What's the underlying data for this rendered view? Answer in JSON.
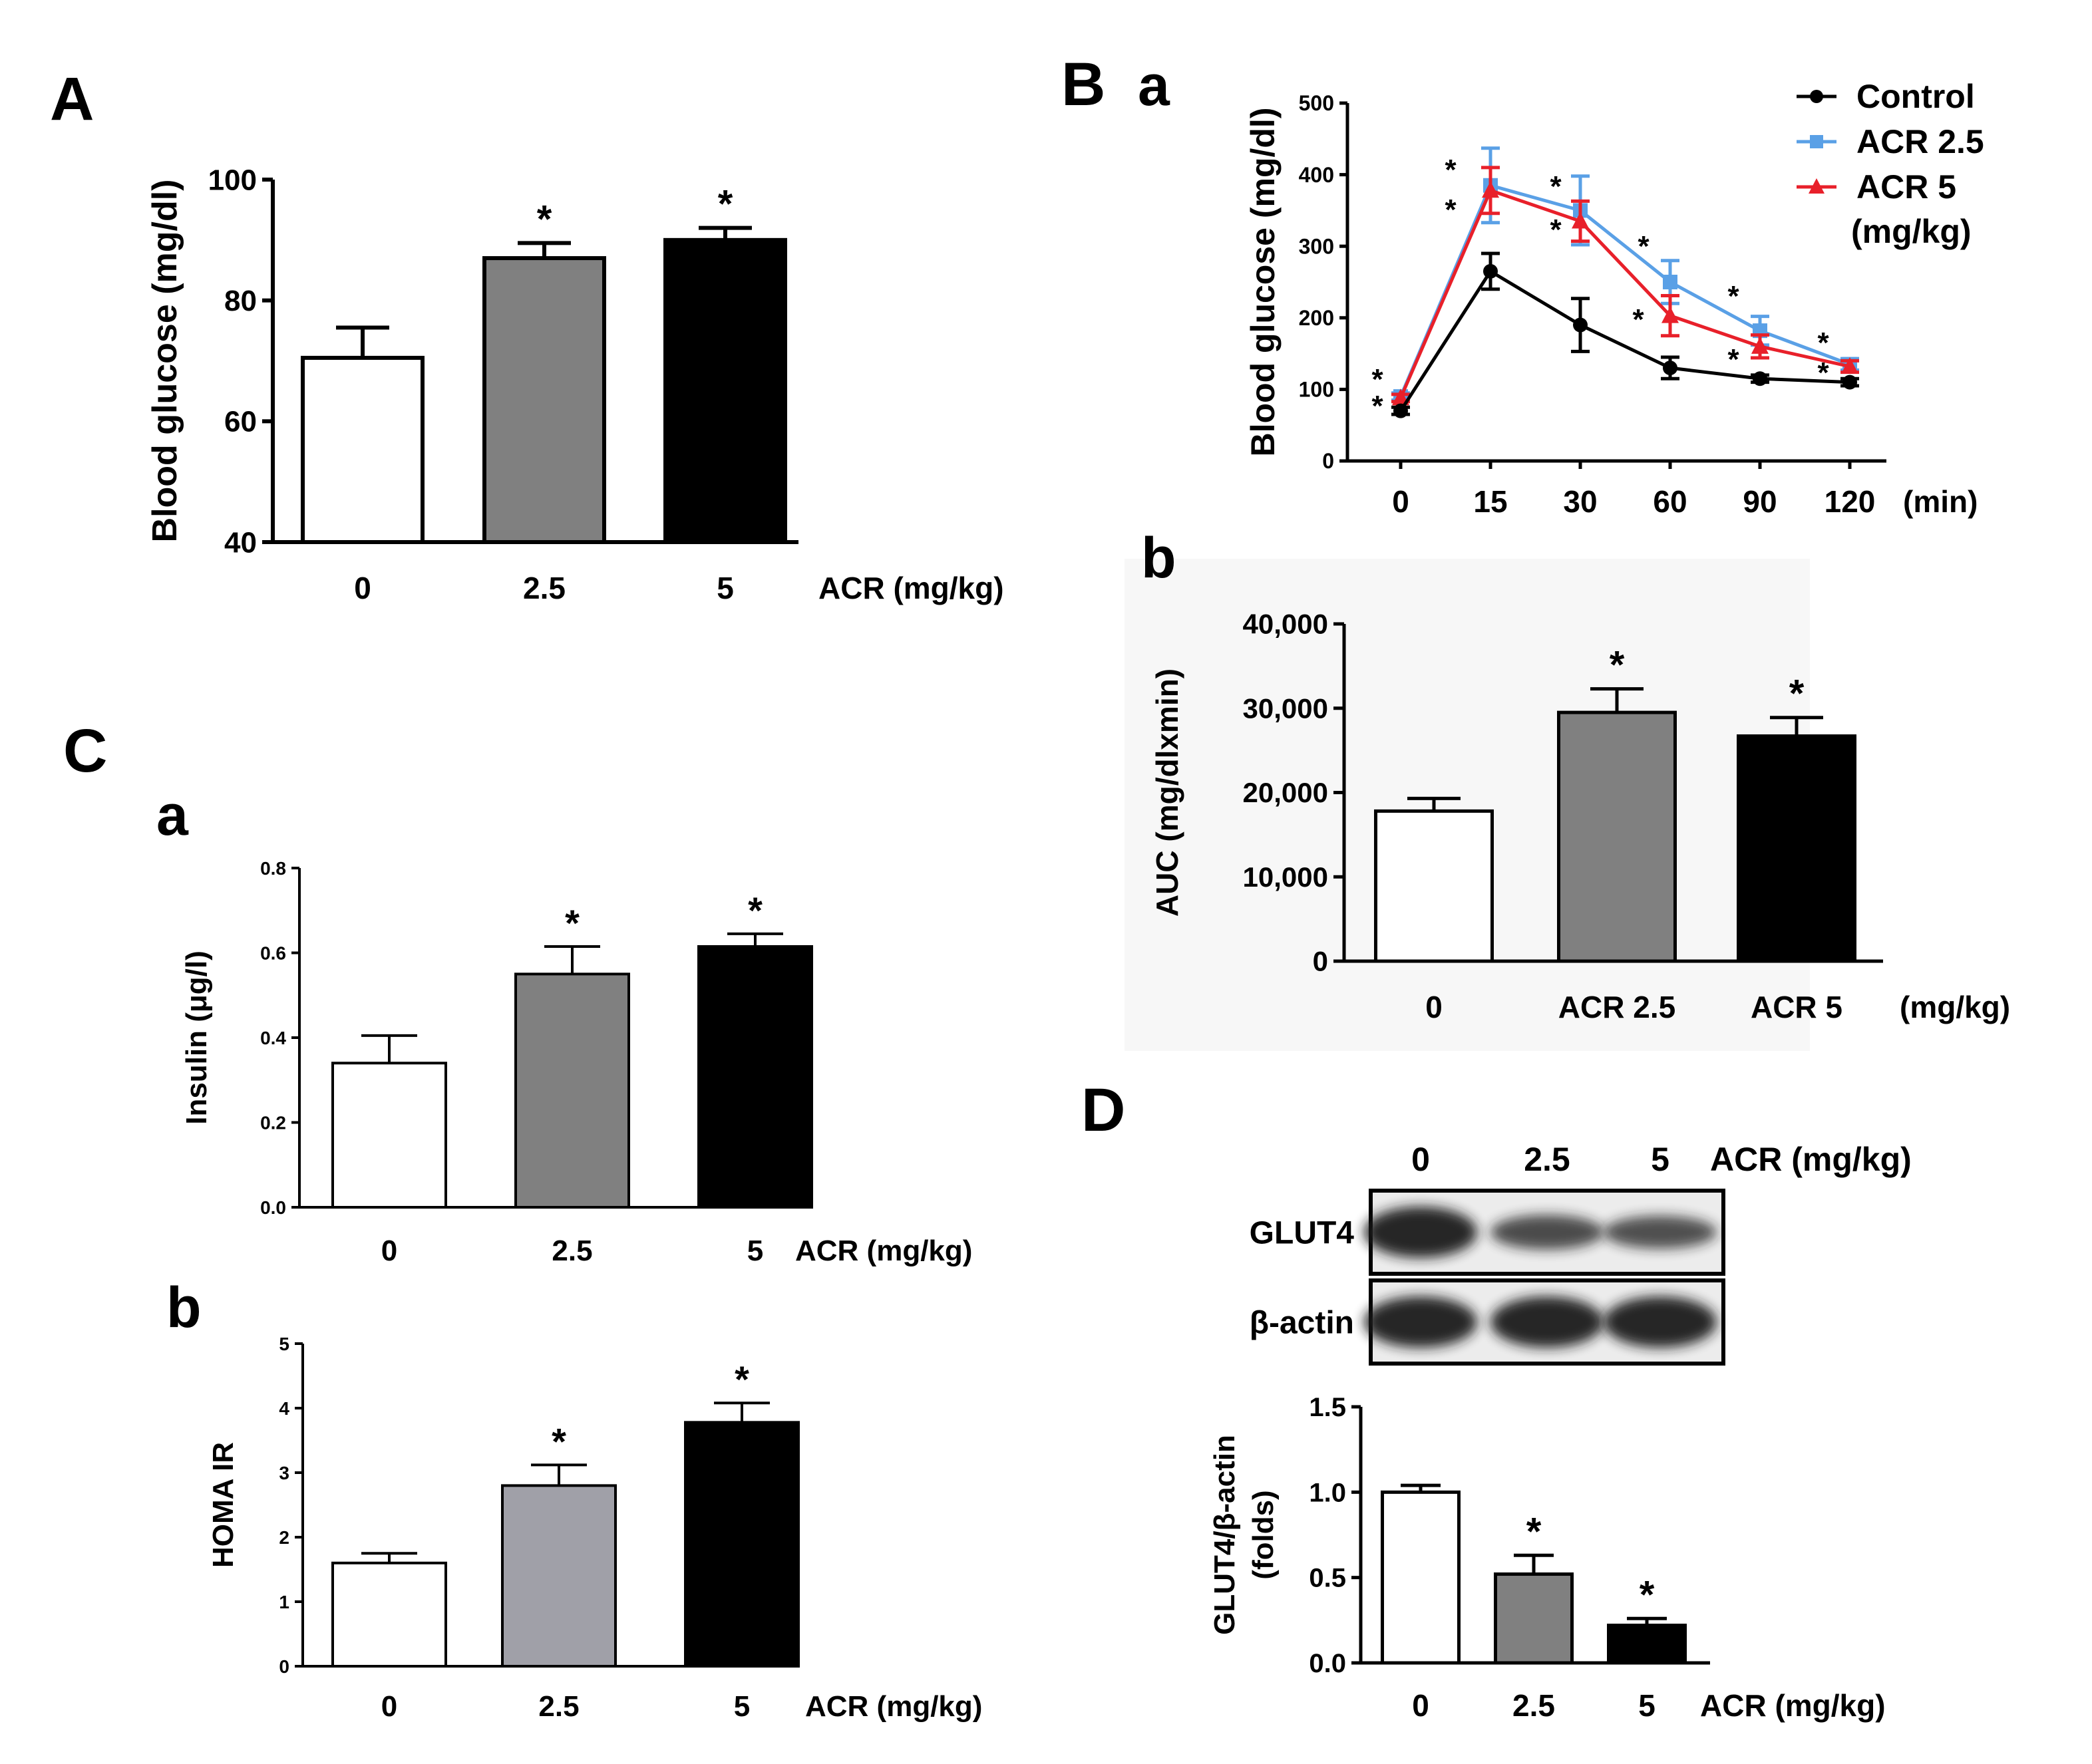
{
  "panel_labels": {
    "A": "A",
    "B": "B",
    "Ba": "a",
    "Bb": "b",
    "C": "C",
    "Ca": "a",
    "Cb": "b",
    "D": "D"
  },
  "blot": {
    "lane_labels": [
      "0",
      "2.5",
      "5"
    ],
    "header_unit": "ACR (mg/kg)",
    "rows": [
      {
        "label": "GLUT4",
        "intensities": [
          1.0,
          0.55,
          0.5
        ]
      },
      {
        "label": "β-actin",
        "intensities": [
          1.0,
          1.0,
          1.0
        ]
      }
    ]
  },
  "chart_data": [
    {
      "id": "A",
      "type": "bar",
      "categories": [
        "0",
        "2.5",
        "5"
      ],
      "values": [
        70.5,
        87,
        90
      ],
      "errors": [
        5,
        2.5,
        2
      ],
      "fills": [
        "#ffffff",
        "#808080",
        "#000000"
      ],
      "significance": [
        "",
        "*",
        "*"
      ],
      "ylabel": "Blood glucose (mg/dl)",
      "xunit": "ACR (mg/kg)",
      "ylim": [
        40,
        100
      ],
      "yticks": [
        40,
        60,
        80,
        100
      ]
    },
    {
      "id": "Ba",
      "type": "line",
      "categories": [
        "0",
        "15",
        "30",
        "60",
        "90",
        "120"
      ],
      "xunit": "(min)",
      "ylabel": "Blood glucose (mg/dl)",
      "ylim": [
        0,
        500
      ],
      "yticks": [
        0,
        100,
        200,
        300,
        400,
        500
      ],
      "legend_position": "top-right",
      "legend_unit": "(mg/kg)",
      "series": [
        {
          "name": "Control",
          "color": "#000000",
          "marker": "circle",
          "values": [
            70,
            265,
            190,
            130,
            115,
            110
          ],
          "errors": [
            5,
            25,
            37,
            15,
            5,
            5
          ]
        },
        {
          "name": "ACR 2.5",
          "color": "#5aa0e6",
          "marker": "square",
          "values": [
            90,
            385,
            350,
            250,
            182,
            135
          ],
          "errors": [
            5,
            52,
            48,
            30,
            20,
            8
          ]
        },
        {
          "name": "ACR 5",
          "color": "#e8202a",
          "marker": "triangle",
          "values": [
            88,
            378,
            335,
            203,
            160,
            132
          ],
          "errors": [
            5,
            32,
            28,
            28,
            16,
            8
          ]
        }
      ]
    },
    {
      "id": "Bb",
      "type": "bar",
      "categories": [
        "0",
        "ACR 2.5",
        "ACR 5"
      ],
      "values": [
        17800,
        29500,
        26700
      ],
      "errors": [
        1500,
        2800,
        2200
      ],
      "fills": [
        "#ffffff",
        "#808080",
        "#000000"
      ],
      "significance": [
        "",
        "*",
        "*"
      ],
      "ylabel": "AUC (mg/dlxmin)",
      "xunit": "(mg/kg)",
      "ylim": [
        0,
        40000
      ],
      "yticks": [
        0,
        10000,
        20000,
        30000,
        40000
      ],
      "ytick_labels": [
        "0",
        "10,000",
        "20,000",
        "30,000",
        "40,000"
      ]
    },
    {
      "id": "Ca",
      "type": "bar",
      "categories": [
        "0",
        "2.5",
        "5"
      ],
      "values": [
        0.34,
        0.55,
        0.615
      ],
      "errors": [
        0.065,
        0.065,
        0.03
      ],
      "fills": [
        "#ffffff",
        "#808080",
        "#000000"
      ],
      "significance": [
        "",
        "*",
        "*"
      ],
      "ylabel": "Insulin  (μg/l)",
      "xunit": "ACR (mg/kg)",
      "ylim": [
        0,
        0.8
      ],
      "yticks": [
        0,
        0.2,
        0.4,
        0.6,
        0.8
      ],
      "ytick_labels": [
        "0.0",
        "0.2",
        "0.4",
        "0.6",
        "0.8"
      ]
    },
    {
      "id": "Cb",
      "type": "bar",
      "categories": [
        "0",
        "2.5",
        "5"
      ],
      "values": [
        1.6,
        2.8,
        3.78
      ],
      "errors": [
        0.15,
        0.32,
        0.3
      ],
      "fills": [
        "#ffffff",
        "#a0a0a8",
        "#000000"
      ],
      "significance": [
        "",
        "*",
        "*"
      ],
      "ylabel": "HOMA IR",
      "xunit": "ACR (mg/kg)",
      "ylim": [
        0,
        5
      ],
      "yticks": [
        0,
        1,
        2,
        3,
        4,
        5
      ]
    },
    {
      "id": "D",
      "type": "bar",
      "categories": [
        "0",
        "2.5",
        "5"
      ],
      "values": [
        1.0,
        0.52,
        0.22
      ],
      "errors": [
        0.04,
        0.11,
        0.04
      ],
      "fills": [
        "#ffffff",
        "#808080",
        "#000000"
      ],
      "significance": [
        "",
        "*",
        "*"
      ],
      "ylabel_lines": [
        "GLUT4/β-actin",
        "(folds)"
      ],
      "xunit": "ACR (mg/kg)",
      "ylim": [
        0,
        1.5
      ],
      "yticks": [
        0,
        0.5,
        1.0,
        1.5
      ],
      "ytick_labels": [
        "0.0",
        "0.5",
        "1.0",
        "1.5"
      ]
    }
  ]
}
